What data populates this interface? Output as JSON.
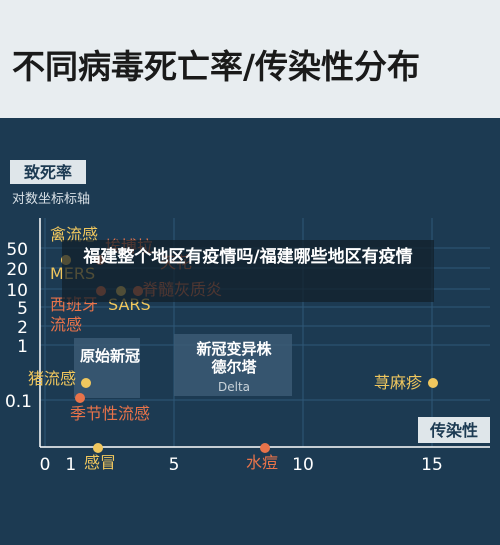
{
  "title": "不同病毒死亡率/传染性分布",
  "overlay_text": "福建整个地区有疫情吗/福建哪些地区有疫情",
  "chart_data": {
    "type": "scatter",
    "title": "不同病毒死亡率/传染性分布",
    "ylabel": "致死率",
    "ylabel_sub": "对数坐标标轴",
    "xlabel": "传染性",
    "x_ticks": [
      0,
      1,
      5,
      10,
      15
    ],
    "y_ticks": [
      "50",
      "20",
      "10",
      "5",
      "2",
      "1",
      "0.1"
    ],
    "points": [
      {
        "name": "禽流感",
        "x": 0.7,
        "y": 40,
        "color": "#f0c75e"
      },
      {
        "name": "埃博拉",
        "x": 1.5,
        "y": 30,
        "color": "#e8734a"
      },
      {
        "name": "MERS",
        "x": 0.7,
        "y": 30,
        "color": "#f0c75e"
      },
      {
        "name": "西班牙流感",
        "x": 2.2,
        "y": 10,
        "color": "#e8734a"
      },
      {
        "name": "SARS",
        "x": 2.9,
        "y": 10,
        "color": "#f0c75e"
      },
      {
        "name": "天花",
        "x": 3.5,
        "y": 20,
        "color": "#e8734a"
      },
      {
        "name": "脊髓灰质炎",
        "x": 3.6,
        "y": 10,
        "color": "#e8734a"
      },
      {
        "name": "猪流感",
        "x": 1.6,
        "y": 0.3,
        "color": "#f0c75e"
      },
      {
        "name": "季节性流感",
        "x": 1.3,
        "y": 0.1,
        "color": "#e8734a"
      },
      {
        "name": "感冒",
        "x": 2.0,
        "y": 0.01,
        "color": "#f0c75e"
      },
      {
        "name": "水痘",
        "x": 8.5,
        "y": 0.01,
        "color": "#e8734a"
      },
      {
        "name": "荨麻疹",
        "x": 15.0,
        "y": 0.3,
        "color": "#f0c75e"
      }
    ],
    "boxes": [
      {
        "label": "原始新冠",
        "sub": ""
      },
      {
        "label": "新冠变异株\n德尔塔",
        "sub": "Delta"
      }
    ]
  }
}
